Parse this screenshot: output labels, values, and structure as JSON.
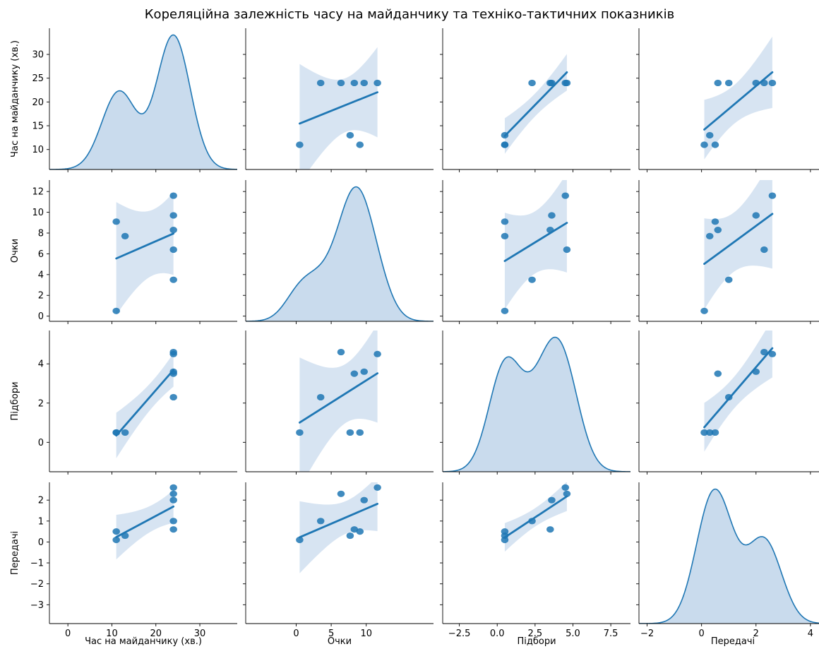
{
  "chart_data": {
    "type": "pairplot",
    "title": "Кореляційна залежність часу на майданчику та техніко-тактичних показників",
    "variables": [
      "Час на майданчику (хв.)",
      "Очки",
      "Підбори",
      "Передачі"
    ],
    "observations": [
      {
        "Час на майданчику (хв.)": 24,
        "Очки": 11.6,
        "Підбори": 4.5,
        "Передачі": 2.6
      },
      {
        "Час на майданчику (хв.)": 24,
        "Очки": 9.7,
        "Підбори": 3.6,
        "Передачі": 2.0
      },
      {
        "Час на майданчику (хв.)": 24,
        "Очки": 8.3,
        "Підбори": 3.5,
        "Передачі": 0.6
      },
      {
        "Час на майданчику (хв.)": 24,
        "Очки": 6.4,
        "Підбори": 4.6,
        "Передачі": 2.3
      },
      {
        "Час на майданчику (хв.)": 24,
        "Очки": 3.5,
        "Підбори": 2.3,
        "Передачі": 1.0
      },
      {
        "Час на майданчику (хв.)": 13,
        "Очки": 7.7,
        "Підбори": 0.5,
        "Передачі": 0.3
      },
      {
        "Час на майданчику (хв.)": 11,
        "Очки": 9.1,
        "Підбори": 0.5,
        "Передачі": 0.5
      },
      {
        "Час на майданчику (хв.)": 11,
        "Очки": 0.5,
        "Підбори": 0.5,
        "Передачі": 0.1
      }
    ],
    "axes": {
      "Час на майданчику (хв.)": {
        "lim": [
          -4.2,
          38.5
        ],
        "ticks": [
          0,
          10,
          20,
          30
        ],
        "row_lim": [
          5.8,
          35.5
        ],
        "row_ticks": [
          10,
          15,
          20,
          25,
          30
        ]
      },
      "Очки": {
        "lim": [
          -7.2,
          19.6
        ],
        "ticks": [
          0,
          5,
          10
        ],
        "row_lim": [
          -0.5,
          13.1
        ],
        "row_ticks": [
          0,
          2,
          4,
          6,
          8,
          10,
          12
        ]
      },
      "Підбори": {
        "lim": [
          -3.6,
          8.8
        ],
        "ticks": [
          -2.5,
          0.0,
          2.5,
          5.0,
          7.5
        ],
        "row_lim": [
          -1.5,
          5.7
        ],
        "row_ticks": [
          0,
          2,
          4
        ]
      },
      "Передачі": {
        "lim": [
          -2.3,
          4.6
        ],
        "ticks": [
          -2,
          0,
          2,
          4
        ],
        "row_lim": [
          -3.9,
          2.85
        ],
        "row_ticks": [
          -3,
          -2,
          -1,
          0,
          1,
          2
        ]
      }
    },
    "diagonal": "kde",
    "off_diagonal": "scatter with linear regression fit and confidence band",
    "color": "#1f77b4",
    "band_color": "#c6d9ec",
    "grid": false,
    "legend": "none"
  }
}
